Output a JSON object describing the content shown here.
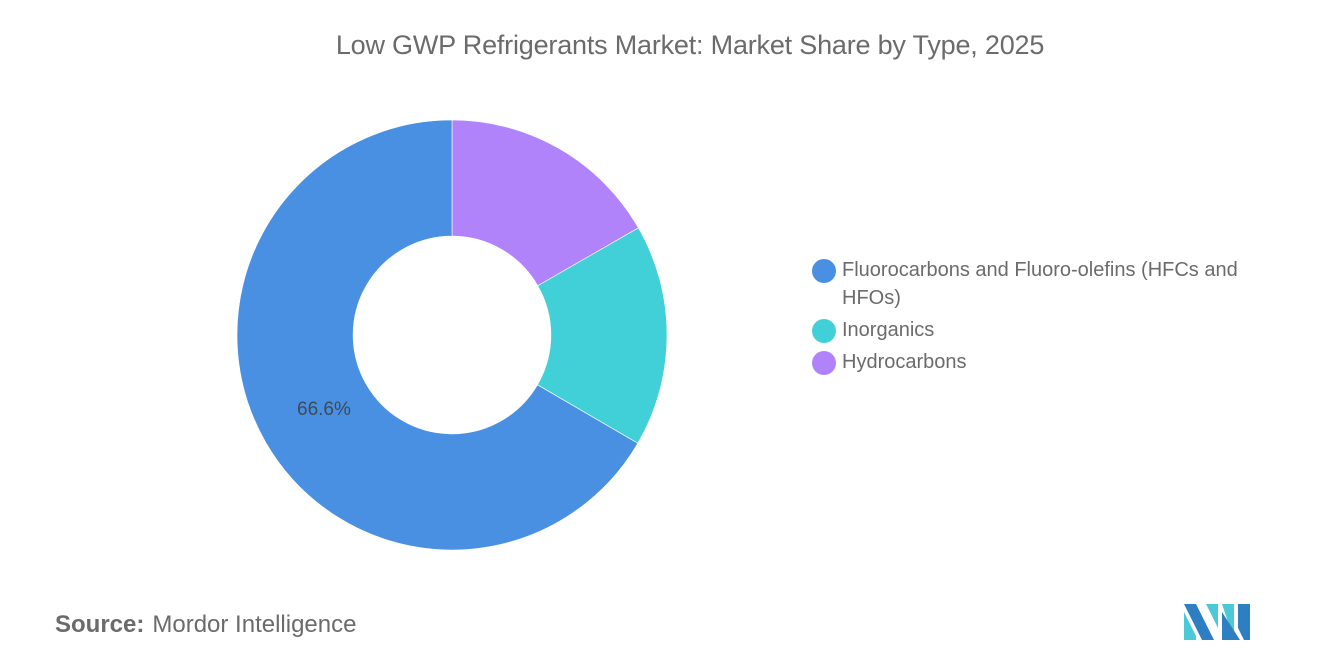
{
  "title": "Low GWP Refrigerants Market: Market Share by Type, 2025",
  "legend": {
    "items": [
      {
        "label": "Fluorocarbons and Fluoro-olefins (HFCs and HFOs)",
        "color": "#4a90e2"
      },
      {
        "label": "Inorganics",
        "color": "#41d0d8"
      },
      {
        "label": "Hydrocarbons",
        "color": "#b083fb"
      }
    ]
  },
  "source": {
    "key": "Source:",
    "value": "Mordor Intelligence"
  },
  "logo": {
    "icon": "mordor-intelligence-logo-icon",
    "colors": [
      "#2d7fc1",
      "#4cc9d6"
    ]
  },
  "chart_data": {
    "type": "pie",
    "subtype": "donut",
    "title": "Low GWP Refrigerants Market: Market Share by Type, 2025",
    "categories": [
      "Fluorocarbons and Fluoro-olefins (HFCs and HFOs)",
      "Inorganics",
      "Hydrocarbons"
    ],
    "values": [
      66.6,
      16.7,
      16.7
    ],
    "colors": [
      "#4a90e2",
      "#41d0d8",
      "#b083fb"
    ],
    "data_labels": [
      {
        "category": "Fluorocarbons and Fluoro-olefins (HFCs and HFOs)",
        "text": "66.6%"
      }
    ],
    "legend_position": "right",
    "start_angle_deg": 0,
    "direction": "clockwise",
    "draw_order": [
      "Hydrocarbons",
      "Inorganics",
      "Fluorocarbons and Fluoro-olefins (HFCs and HFOs)"
    ],
    "inner_radius_ratio": 0.46
  }
}
